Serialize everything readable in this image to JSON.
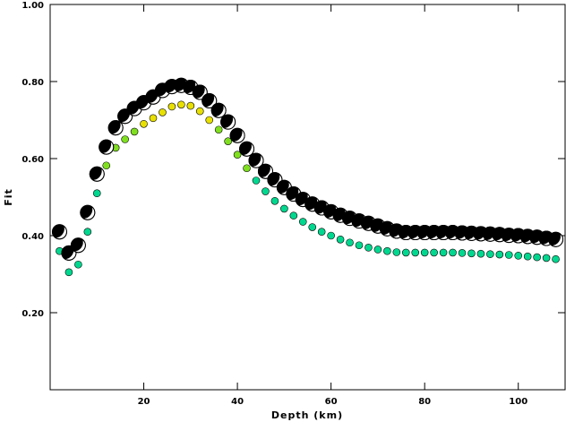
{
  "chart_data": {
    "type": "scatter",
    "title": "",
    "xlabel": "Depth (km)",
    "ylabel": "Fit",
    "xlim": [
      0,
      110
    ],
    "ylim": [
      0,
      1
    ],
    "x_ticks": [
      20,
      40,
      60,
      80,
      100
    ],
    "y_ticks": [
      0.2,
      0.4,
      0.6,
      0.8,
      1.0
    ],
    "x_tick_labels": [
      "20",
      "40",
      "60",
      "80",
      "100"
    ],
    "y_tick_labels": [
      "0.20",
      "0.40",
      "0.60",
      "0.80",
      "1.00"
    ],
    "grid": false,
    "legend": "none",
    "series": [
      {
        "marker": "beachball",
        "x": [
          2,
          4,
          6,
          8,
          10,
          12,
          14,
          16,
          18,
          20,
          22,
          24,
          26,
          28,
          30,
          32,
          34,
          36,
          38,
          40,
          42,
          44,
          46,
          48,
          50,
          52,
          54,
          56,
          58,
          60,
          62,
          64,
          66,
          68,
          70,
          72,
          74,
          76,
          78,
          80,
          82,
          84,
          86,
          88,
          90,
          92,
          94,
          96,
          98,
          100,
          102,
          104,
          106,
          108
        ],
        "y": [
          0.41,
          0.355,
          0.375,
          0.46,
          0.56,
          0.63,
          0.68,
          0.71,
          0.73,
          0.745,
          0.76,
          0.777,
          0.787,
          0.79,
          0.785,
          0.772,
          0.75,
          0.725,
          0.695,
          0.66,
          0.625,
          0.595,
          0.567,
          0.545,
          0.525,
          0.508,
          0.494,
          0.482,
          0.472,
          0.462,
          0.453,
          0.445,
          0.438,
          0.432,
          0.425,
          0.418,
          0.412,
          0.408,
          0.408,
          0.408,
          0.408,
          0.408,
          0.408,
          0.407,
          0.406,
          0.405,
          0.404,
          0.403,
          0.401,
          0.4,
          0.398,
          0.396,
          0.393,
          0.39
        ]
      },
      {
        "marker": "dot",
        "x": [
          2,
          4,
          6,
          8,
          10,
          12,
          14,
          16,
          18,
          20,
          22,
          24,
          26,
          28,
          30,
          32,
          34,
          36,
          38,
          40,
          42,
          44,
          46,
          48,
          50,
          52,
          54,
          56,
          58,
          60,
          62,
          64,
          66,
          68,
          70,
          72,
          74,
          76,
          78,
          80,
          82,
          84,
          86,
          88,
          90,
          92,
          94,
          96,
          98,
          100,
          102,
          104,
          106,
          108
        ],
        "y": [
          0.36,
          0.305,
          0.325,
          0.41,
          0.51,
          0.582,
          0.628,
          0.65,
          0.67,
          0.69,
          0.705,
          0.72,
          0.735,
          0.74,
          0.737,
          0.723,
          0.7,
          0.675,
          0.645,
          0.61,
          0.575,
          0.543,
          0.515,
          0.49,
          0.47,
          0.452,
          0.436,
          0.422,
          0.41,
          0.4,
          0.39,
          0.382,
          0.375,
          0.369,
          0.364,
          0.36,
          0.357,
          0.356,
          0.356,
          0.356,
          0.356,
          0.356,
          0.356,
          0.355,
          0.354,
          0.353,
          0.352,
          0.351,
          0.35,
          0.348,
          0.346,
          0.344,
          0.342,
          0.339
        ]
      }
    ]
  },
  "colors": {
    "frame": "#000000",
    "beachball_fill": "#000000",
    "beachball_light": "#ffffff",
    "dot_low": "#00d890",
    "dot_mid": "#80e020",
    "dot_high": "#e8e000",
    "dot_stroke": "#000000"
  }
}
